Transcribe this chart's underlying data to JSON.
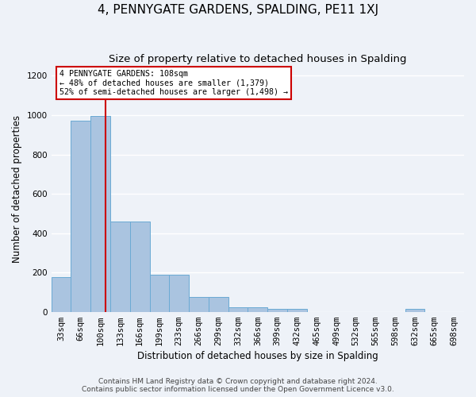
{
  "title": "4, PENNYGATE GARDENS, SPALDING, PE11 1XJ",
  "subtitle": "Size of property relative to detached houses in Spalding",
  "xlabel": "Distribution of detached houses by size in Spalding",
  "ylabel": "Number of detached properties",
  "bins": [
    "33sqm",
    "66sqm",
    "100sqm",
    "133sqm",
    "166sqm",
    "199sqm",
    "233sqm",
    "266sqm",
    "299sqm",
    "332sqm",
    "366sqm",
    "399sqm",
    "432sqm",
    "465sqm",
    "499sqm",
    "532sqm",
    "565sqm",
    "598sqm",
    "632sqm",
    "665sqm",
    "698sqm"
  ],
  "bar_heights": [
    175,
    970,
    995,
    460,
    460,
    190,
    190,
    75,
    75,
    25,
    25,
    15,
    15,
    0,
    0,
    0,
    0,
    0,
    15,
    0,
    0
  ],
  "bar_color": "#aac4e0",
  "bar_edge_color": "#6aaad4",
  "annotation_text": "4 PENNYGATE GARDENS: 108sqm\n← 48% of detached houses are smaller (1,379)\n52% of semi-detached houses are larger (1,498) →",
  "annotation_box_color": "#ffffff",
  "annotation_box_edge_color": "#cc0000",
  "vline_color": "#cc0000",
  "ylim": [
    0,
    1250
  ],
  "yticks": [
    0,
    200,
    400,
    600,
    800,
    1000,
    1200
  ],
  "footer_line1": "Contains HM Land Registry data © Crown copyright and database right 2024.",
  "footer_line2": "Contains public sector information licensed under the Open Government Licence v3.0.",
  "background_color": "#eef2f8",
  "grid_color": "#ffffff",
  "title_fontsize": 11,
  "subtitle_fontsize": 9.5,
  "axis_label_fontsize": 8.5,
  "tick_fontsize": 7.5,
  "footer_fontsize": 6.5
}
